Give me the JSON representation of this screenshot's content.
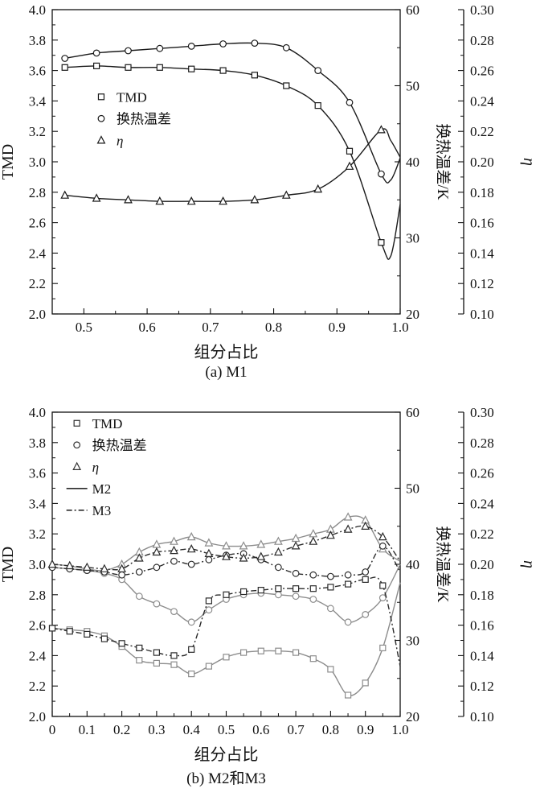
{
  "chart_data": [
    {
      "id": "a",
      "type": "line",
      "caption": "(a) M1",
      "xlabel": "组分占比",
      "ylabel_left": "TMD",
      "ylabel_right1": "换热温差/K",
      "ylabel_right2": "η",
      "x_axis": {
        "min": 0.45,
        "max": 1.0,
        "major": [
          0.5,
          0.6,
          0.7,
          0.8,
          0.9,
          1.0
        ],
        "labels": [
          "0.5",
          "0.6",
          "0.7",
          "0.8",
          "0.9",
          "1.0"
        ],
        "minor_step": 0.05
      },
      "left_axis": {
        "min": 2.0,
        "max": 4.0,
        "major": [
          2.0,
          2.2,
          2.4,
          2.6,
          2.8,
          3.0,
          3.2,
          3.4,
          3.6,
          3.8,
          4.0
        ],
        "labels": [
          "2.0",
          "2.2",
          "2.4",
          "2.6",
          "2.8",
          "3.0",
          "3.2",
          "3.4",
          "3.6",
          "3.8",
          "4.0"
        ],
        "minor_step": 0.1
      },
      "right1_axis": {
        "min": 20,
        "max": 60,
        "major": [
          20,
          30,
          40,
          50,
          60
        ],
        "labels": [
          "20",
          "30",
          "40",
          "50",
          "60"
        ],
        "minor_step": 5
      },
      "right2_axis": {
        "min": 0.1,
        "max": 0.3,
        "major": [
          0.1,
          0.12,
          0.14,
          0.16,
          0.18,
          0.2,
          0.22,
          0.24,
          0.26,
          0.28,
          0.3
        ],
        "labels": [
          "0.10",
          "0.12",
          "0.14",
          "0.16",
          "0.18",
          "0.20",
          "0.22",
          "0.24",
          "0.26",
          "0.28",
          "0.30"
        ],
        "minor_step": 0.01
      },
      "legend": {
        "fx": 0.12,
        "fy": 0.26,
        "items": [
          {
            "type": "marker",
            "marker": "square",
            "label": "TMD",
            "color": "#1a1a1a"
          },
          {
            "type": "marker",
            "marker": "circle",
            "label": "换热温差",
            "color": "#1a1a1a"
          },
          {
            "type": "marker",
            "marker": "triangle",
            "label": "η",
            "color": "#1a1a1a"
          }
        ]
      },
      "series": [
        {
          "name": "TMD",
          "axis": "left",
          "marker": "square",
          "line": "solid",
          "color": "#1a1a1a",
          "x": [
            0.47,
            0.52,
            0.57,
            0.62,
            0.67,
            0.72,
            0.77,
            0.82,
            0.87,
            0.92,
            0.97,
            0.985,
            1.0
          ],
          "y": [
            3.62,
            3.63,
            3.62,
            3.62,
            3.61,
            3.6,
            3.57,
            3.5,
            3.37,
            3.07,
            2.47,
            2.38,
            2.72
          ],
          "marker_count": 11
        },
        {
          "name": "换热温差",
          "axis": "right1",
          "marker": "circle",
          "line": "solid",
          "color": "#1a1a1a",
          "x": [
            0.47,
            0.52,
            0.57,
            0.62,
            0.67,
            0.72,
            0.77,
            0.82,
            0.87,
            0.92,
            0.97,
            0.985,
            1.0
          ],
          "y": [
            53.6,
            54.3,
            54.6,
            54.9,
            55.2,
            55.5,
            55.6,
            55.0,
            52.0,
            47.8,
            38.4,
            37.6,
            40.5
          ],
          "marker_count": 11
        },
        {
          "name": "η",
          "axis": "right2",
          "marker": "triangle",
          "line": "solid",
          "color": "#1a1a1a",
          "x": [
            0.47,
            0.52,
            0.57,
            0.62,
            0.67,
            0.72,
            0.77,
            0.82,
            0.87,
            0.92,
            0.97,
            0.985,
            1.0
          ],
          "y": [
            0.178,
            0.176,
            0.175,
            0.174,
            0.174,
            0.174,
            0.175,
            0.178,
            0.182,
            0.197,
            0.221,
            0.214,
            0.203
          ],
          "marker_count": 11
        }
      ]
    },
    {
      "id": "b",
      "type": "line",
      "caption": "(b) M2和M3",
      "xlabel": "组分占比",
      "ylabel_left": "TMD",
      "ylabel_right1": "换热温差/K",
      "ylabel_right2": "η",
      "x_axis": {
        "min": 0,
        "max": 1.0,
        "major": [
          0,
          0.1,
          0.2,
          0.3,
          0.4,
          0.5,
          0.6,
          0.7,
          0.8,
          0.9,
          1.0
        ],
        "labels": [
          "0",
          "0.1",
          "0.2",
          "0.3",
          "0.4",
          "0.5",
          "0.6",
          "0.7",
          "0.8",
          "0.9",
          "1.0"
        ],
        "minor_step": 0.05
      },
      "left_axis": {
        "min": 2.0,
        "max": 4.0,
        "major": [
          2.0,
          2.2,
          2.4,
          2.6,
          2.8,
          3.0,
          3.2,
          3.4,
          3.6,
          3.8,
          4.0
        ],
        "labels": [
          "2.0",
          "2.2",
          "2.4",
          "2.6",
          "2.8",
          "3.0",
          "3.2",
          "3.4",
          "3.6",
          "3.8",
          "4.0"
        ],
        "minor_step": 0.1
      },
      "right1_axis": {
        "min": 20,
        "max": 60,
        "major": [
          20,
          30,
          40,
          50,
          60
        ],
        "labels": [
          "20",
          "30",
          "40",
          "50",
          "60"
        ],
        "minor_step": 5
      },
      "right2_axis": {
        "min": 0.1,
        "max": 0.3,
        "major": [
          0.1,
          0.12,
          0.14,
          0.16,
          0.18,
          0.2,
          0.22,
          0.24,
          0.26,
          0.28,
          0.3
        ],
        "labels": [
          "0.10",
          "0.12",
          "0.14",
          "0.16",
          "0.18",
          "0.20",
          "0.22",
          "0.24",
          "0.26",
          "0.28",
          "0.30"
        ],
        "minor_step": 0.01
      },
      "legend": {
        "fx": 0.05,
        "fy": 0.01,
        "items": [
          {
            "type": "marker",
            "marker": "square",
            "label": "TMD",
            "color": "#333333"
          },
          {
            "type": "marker",
            "marker": "circle",
            "label": "换热温差",
            "color": "#333333"
          },
          {
            "type": "marker",
            "marker": "triangle",
            "label": "η",
            "color": "#333333"
          },
          {
            "type": "line",
            "line": "solid",
            "label": "M2",
            "color": "#2b2b2b"
          },
          {
            "type": "line",
            "line": "dashed",
            "label": "M3",
            "color": "#2b2b2b"
          }
        ]
      },
      "series": [
        {
          "name": "TMD",
          "group": "M2",
          "axis": "left",
          "marker": "square",
          "line": "solid",
          "color": "#8c8c8c",
          "x": [
            0,
            0.05,
            0.1,
            0.15,
            0.2,
            0.25,
            0.3,
            0.35,
            0.4,
            0.45,
            0.5,
            0.55,
            0.6,
            0.65,
            0.7,
            0.75,
            0.8,
            0.85,
            0.9,
            0.95,
            1.0
          ],
          "y": [
            2.58,
            2.57,
            2.56,
            2.53,
            2.46,
            2.37,
            2.35,
            2.34,
            2.28,
            2.33,
            2.39,
            2.42,
            2.43,
            2.43,
            2.42,
            2.38,
            2.31,
            2.14,
            2.22,
            2.45,
            2.88
          ],
          "marker_count": 20
        },
        {
          "name": "换热温差",
          "group": "M2",
          "axis": "right1",
          "marker": "circle",
          "line": "solid",
          "color": "#8c8c8c",
          "x": [
            0,
            0.05,
            0.1,
            0.15,
            0.2,
            0.25,
            0.3,
            0.35,
            0.4,
            0.45,
            0.5,
            0.55,
            0.6,
            0.65,
            0.7,
            0.75,
            0.8,
            0.85,
            0.9,
            0.95,
            1.0
          ],
          "y": [
            39.6,
            39.4,
            39.2,
            38.8,
            38.0,
            35.8,
            34.8,
            33.8,
            32.4,
            34.0,
            35.4,
            36.0,
            36.2,
            36.0,
            35.8,
            35.4,
            34.2,
            32.4,
            33.4,
            35.6,
            40.0
          ],
          "marker_count": 20
        },
        {
          "name": "η",
          "group": "M2",
          "axis": "right2",
          "marker": "triangle",
          "line": "solid",
          "color": "#8c8c8c",
          "x": [
            0,
            0.05,
            0.1,
            0.15,
            0.2,
            0.25,
            0.3,
            0.35,
            0.4,
            0.45,
            0.5,
            0.55,
            0.6,
            0.65,
            0.7,
            0.75,
            0.8,
            0.85,
            0.9,
            0.95,
            1.0
          ],
          "y": [
            0.2,
            0.199,
            0.197,
            0.196,
            0.2,
            0.208,
            0.213,
            0.215,
            0.218,
            0.214,
            0.212,
            0.212,
            0.213,
            0.215,
            0.217,
            0.22,
            0.223,
            0.231,
            0.229,
            0.21,
            0.202
          ],
          "marker_count": 20
        },
        {
          "name": "TMD",
          "group": "M3",
          "axis": "left",
          "marker": "square",
          "line": "dashed",
          "color": "#2b2b2b",
          "x": [
            0,
            0.05,
            0.1,
            0.15,
            0.2,
            0.25,
            0.3,
            0.35,
            0.4,
            0.45,
            0.5,
            0.55,
            0.6,
            0.65,
            0.7,
            0.75,
            0.8,
            0.85,
            0.9,
            0.95,
            1.0
          ],
          "y": [
            2.58,
            2.56,
            2.54,
            2.51,
            2.48,
            2.45,
            2.42,
            2.4,
            2.44,
            2.76,
            2.8,
            2.82,
            2.83,
            2.84,
            2.84,
            2.84,
            2.85,
            2.87,
            2.9,
            2.86,
            2.33
          ],
          "marker_count": 20
        },
        {
          "name": "换热温差",
          "group": "M3",
          "axis": "right1",
          "marker": "circle",
          "line": "dashed",
          "color": "#2b2b2b",
          "x": [
            0,
            0.05,
            0.1,
            0.15,
            0.2,
            0.25,
            0.3,
            0.35,
            0.4,
            0.45,
            0.5,
            0.55,
            0.6,
            0.65,
            0.7,
            0.75,
            0.8,
            0.85,
            0.9,
            0.95,
            1.0
          ],
          "y": [
            39.6,
            39.4,
            39.2,
            39.0,
            38.6,
            39.0,
            39.6,
            40.4,
            40.0,
            40.6,
            41.2,
            41.4,
            40.6,
            39.6,
            38.8,
            38.6,
            38.4,
            38.6,
            39.0,
            42.4,
            39.0
          ],
          "marker_count": 20
        },
        {
          "name": "η",
          "group": "M3",
          "axis": "right2",
          "marker": "triangle",
          "line": "dashed",
          "color": "#2b2b2b",
          "x": [
            0,
            0.05,
            0.1,
            0.15,
            0.2,
            0.25,
            0.3,
            0.35,
            0.4,
            0.45,
            0.5,
            0.55,
            0.6,
            0.65,
            0.7,
            0.75,
            0.8,
            0.85,
            0.9,
            0.95,
            1.0
          ],
          "y": [
            0.2,
            0.199,
            0.198,
            0.197,
            0.197,
            0.204,
            0.208,
            0.209,
            0.21,
            0.207,
            0.205,
            0.204,
            0.205,
            0.208,
            0.212,
            0.215,
            0.219,
            0.223,
            0.225,
            0.218,
            0.202
          ],
          "marker_count": 20
        }
      ]
    }
  ]
}
